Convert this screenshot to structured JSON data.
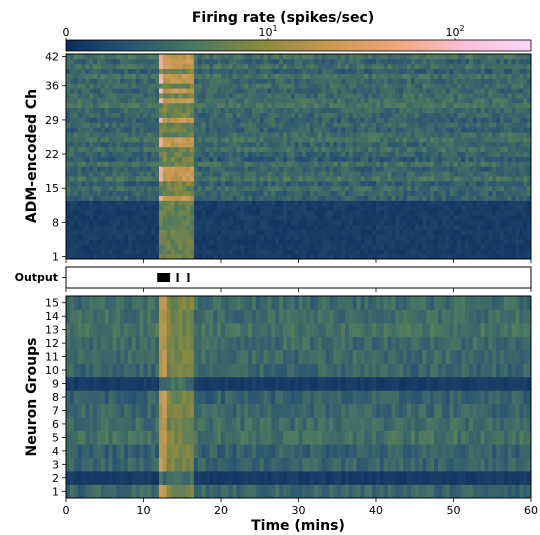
{
  "chart_data": [
    {
      "type": "heatmap",
      "colorbar": {
        "title": "Firing rate (spikes/sec)",
        "scale": "symlog",
        "ticks": [
          "0",
          "10",
          "10"
        ],
        "tick_exponents": [
          "",
          "1",
          "2"
        ],
        "colormap": [
          "#0c2d5e",
          "#2a5672",
          "#4f7a5f",
          "#8c8a3e",
          "#c99a52",
          "#f0a780",
          "#fbc0d6",
          "#fbd8f6"
        ]
      },
      "ylabel": "ADM-encoded Ch",
      "ylim": [
        1,
        42
      ],
      "yticks": [
        "1",
        "8",
        "15",
        "22",
        "29",
        "36",
        "42"
      ],
      "xlim": [
        0,
        60
      ],
      "x_units": "mins",
      "burst_window": [
        11.8,
        16.5
      ],
      "hot_rows": [
        13,
        17,
        18,
        19,
        24,
        25,
        29,
        33,
        35,
        37,
        38,
        40,
        41,
        42
      ],
      "silent_band": [
        1,
        12
      ]
    },
    {
      "type": "scatter",
      "ylabel": "Output",
      "events_x": [
        11.9,
        12.1,
        12.3,
        12.5,
        12.7,
        12.9,
        13.1,
        13.3,
        14.4,
        15.8
      ]
    },
    {
      "type": "heatmap",
      "ylabel": "Neuron Groups",
      "ylim": [
        1,
        15
      ],
      "yticks": [
        "1",
        "2",
        "3",
        "4",
        "5",
        "6",
        "7",
        "8",
        "9",
        "10",
        "11",
        "12",
        "13",
        "14",
        "15"
      ],
      "xlabel": "Time (mins)",
      "xticks": [
        "0",
        "10",
        "20",
        "30",
        "40",
        "50",
        "60"
      ],
      "xlim": [
        0,
        60
      ],
      "burst_window": [
        11.8,
        16.5
      ],
      "dark_rows": [
        2,
        9
      ]
    }
  ]
}
